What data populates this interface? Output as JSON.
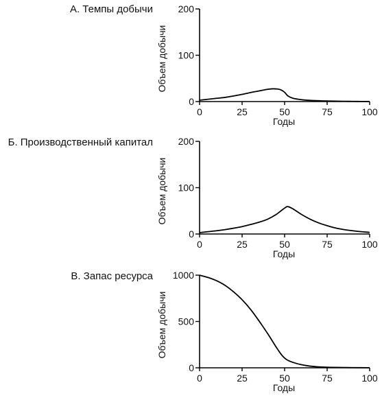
{
  "chart_data": [
    {
      "type": "line",
      "title": "А. Темпы добычи",
      "xlabel": "Годы",
      "ylabel": "Объем добычи",
      "xlim": [
        0,
        100
      ],
      "ylim": [
        0,
        200
      ],
      "xticks": [
        "0",
        "25",
        "50",
        "75",
        "100"
      ],
      "yticks": [
        "0",
        "100",
        "200"
      ],
      "grid": false,
      "x": [
        0,
        5,
        10,
        15,
        20,
        25,
        30,
        35,
        40,
        43,
        46,
        48,
        50,
        52,
        55,
        60,
        65,
        70,
        75,
        80,
        85,
        90,
        95,
        100
      ],
      "values": [
        3,
        5,
        7,
        9,
        12,
        15.5,
        19.5,
        23,
        26.5,
        27.5,
        27,
        25,
        20,
        12,
        7,
        4,
        2.5,
        1.8,
        1.2,
        0.8,
        0.5,
        0.4,
        0.2,
        0.1
      ]
    },
    {
      "type": "line",
      "title": "Б. Производственный капитал",
      "xlabel": "Годы",
      "ylabel": "Объем добычи",
      "xlim": [
        0,
        100
      ],
      "ylim": [
        0,
        200
      ],
      "xticks": [
        "0",
        "25",
        "50",
        "75",
        "100"
      ],
      "yticks": [
        "0",
        "100",
        "200"
      ],
      "grid": false,
      "x": [
        0,
        5,
        10,
        15,
        20,
        25,
        30,
        35,
        40,
        45,
        50,
        52,
        55,
        60,
        65,
        70,
        75,
        80,
        85,
        90,
        95,
        100
      ],
      "values": [
        3,
        5,
        7,
        9.5,
        12.5,
        16,
        20.5,
        25.5,
        32,
        42,
        56,
        59,
        54,
        42,
        32,
        24,
        18,
        13,
        9.5,
        7,
        5,
        3.5
      ]
    },
    {
      "type": "line",
      "title": "В. Запас ресурса",
      "xlabel": "Годы",
      "ylabel": "Объем добычи",
      "xlim": [
        0,
        100
      ],
      "ylim": [
        0,
        1000
      ],
      "xticks": [
        "0",
        "25",
        "50",
        "75",
        "100"
      ],
      "yticks": [
        "0",
        "500",
        "1000"
      ],
      "grid": false,
      "x": [
        0,
        5,
        10,
        15,
        20,
        25,
        30,
        35,
        40,
        45,
        48,
        50,
        52,
        55,
        60,
        65,
        70,
        75,
        80,
        90,
        100
      ],
      "values": [
        1000,
        975,
        940,
        890,
        820,
        735,
        630,
        505,
        370,
        225,
        145,
        105,
        80,
        58,
        33,
        18,
        10,
        6,
        4,
        2,
        1
      ]
    }
  ]
}
